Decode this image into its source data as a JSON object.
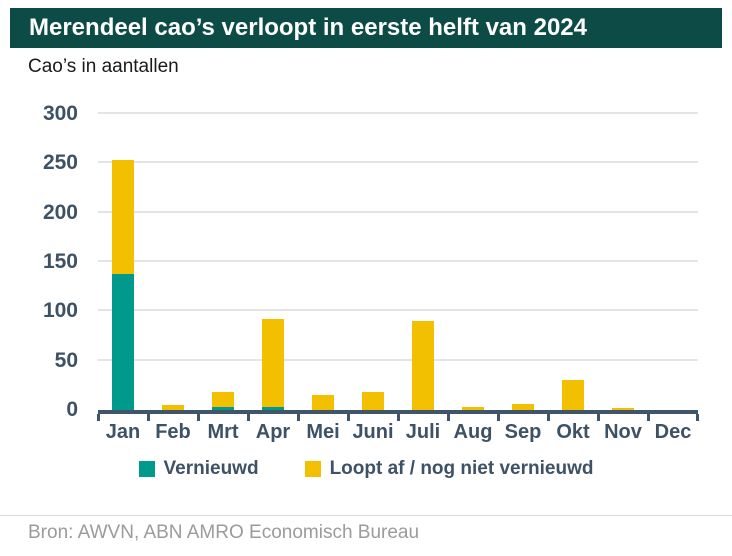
{
  "header": {
    "title": "Merendeel cao’s verloopt in eerste helft van 2024",
    "subtitle": "Cao’s in aantallen"
  },
  "footer": {
    "source": "Bron: AWVN, ABN AMRO Economisch Bureau"
  },
  "colors": {
    "banner_bg": "#0d4c46",
    "banner_text": "#ffffff",
    "teal": "#009a8d",
    "yellow": "#f3c000",
    "axis": "#41556a",
    "label": "#3e5266",
    "gridline": "#e4e4e4",
    "source_text": "#9b9b9b"
  },
  "chart_data": {
    "type": "bar",
    "stacked": true,
    "title": "Merendeel cao’s verloopt in eerste helft van 2024",
    "subtitle": "Cao’s in aantallen",
    "categories": [
      "Jan",
      "Feb",
      "Mrt",
      "Apr",
      "Mei",
      "Juni",
      "Juli",
      "Aug",
      "Sep",
      "Okt",
      "Nov",
      "Dec"
    ],
    "series": [
      {
        "name": "Vernieuwd",
        "color_key": "teal",
        "values": [
          138,
          0,
          3,
          3,
          0,
          0,
          0,
          0,
          0,
          0,
          0,
          0
        ]
      },
      {
        "name": "Loopt af / nog niet vernieuwd",
        "color_key": "yellow",
        "values": [
          115,
          5,
          15,
          89,
          15,
          18,
          90,
          3,
          6,
          30,
          2,
          0
        ]
      }
    ],
    "totals": [
      253,
      5,
      18,
      92,
      15,
      18,
      90,
      3,
      6,
      30,
      2,
      0
    ],
    "xlabel": "",
    "ylabel": "",
    "ylim": [
      0,
      300
    ],
    "ytick_step": 50,
    "grid": true,
    "legend_position": "bottom"
  }
}
